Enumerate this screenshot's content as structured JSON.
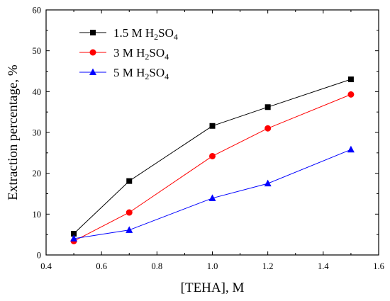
{
  "chart_data": {
    "type": "line",
    "title": "",
    "xlabel": "[TEHA], M",
    "ylabel": "Extraction percentage, %",
    "xlim": [
      0.4,
      1.6
    ],
    "ylim": [
      0,
      60
    ],
    "xticks": [
      "0.4",
      "0.6",
      "0.8",
      "1.0",
      "1.2",
      "1.4",
      "1.6"
    ],
    "yticks": [
      "0",
      "10",
      "20",
      "30",
      "40",
      "50",
      "60"
    ],
    "grid": false,
    "legend_position": "top-left",
    "series": [
      {
        "name": "1.5 M H2SO4",
        "legend": {
          "prefix": "1.5 M H",
          "sub1": "2",
          "mid": "SO",
          "sub2": "4"
        },
        "color": "#000000",
        "marker": "square",
        "x": [
          0.5,
          0.7,
          1.0,
          1.2,
          1.5
        ],
        "y": [
          5.2,
          18.1,
          31.6,
          36.2,
          43.0
        ]
      },
      {
        "name": "3 M H2SO4",
        "legend": {
          "prefix": "3 M H",
          "sub1": "2",
          "mid": "SO",
          "sub2": "4"
        },
        "color": "#ff0000",
        "marker": "circle",
        "x": [
          0.5,
          0.7,
          1.0,
          1.2,
          1.5
        ],
        "y": [
          3.4,
          10.4,
          24.2,
          31.0,
          39.3
        ]
      },
      {
        "name": "5 M H2SO4",
        "legend": {
          "prefix": "5 M H",
          "sub1": "2",
          "mid": "SO",
          "sub2": "4"
        },
        "color": "#0000ff",
        "marker": "triangle",
        "x": [
          0.5,
          0.7,
          1.0,
          1.2,
          1.5
        ],
        "y": [
          4.0,
          6.1,
          13.9,
          17.5,
          25.8
        ]
      }
    ]
  }
}
